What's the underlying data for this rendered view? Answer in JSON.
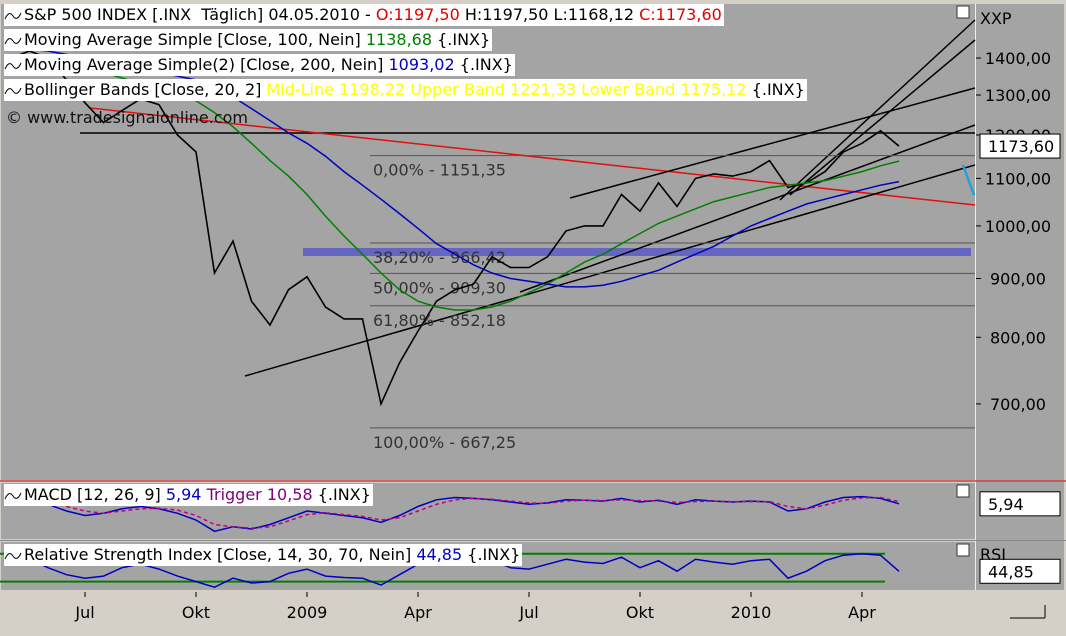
{
  "chart_data": [
    {
      "type": "line",
      "log": true,
      "legend_lines": [
        [
          {
            "text": "S&P 500 INDEX [.INX  Täglich] 04.05.2010 - "
          },
          {
            "text": "O:1197,50",
            "color": "#e00000"
          },
          {
            "text": " H:1197,50 L:1168,12 "
          },
          {
            "text": "C:1173,60",
            "color": "#e00000"
          }
        ],
        [
          {
            "text": "Moving Average Simple [Close, 100, Nein] "
          },
          {
            "text": "1138,68",
            "color": "#008000"
          },
          {
            "text": " {.INX}"
          }
        ],
        [
          {
            "text": "Moving Average Simple(2) [Close, 200, Nein] "
          },
          {
            "text": "1093,02",
            "color": "#0000c0"
          },
          {
            "text": " {.INX}"
          }
        ],
        [
          {
            "text": "Bollinger Bands [Close, 20, 2] "
          },
          {
            "text": "Mid-Line 1198,22 Upper Band 1221,33 Lower Band 1175,12",
            "color": "#ffff00"
          },
          {
            "text": " {.INX}"
          }
        ]
      ],
      "watermark": "© www.tradesignalonline.com",
      "symbol": "XXP",
      "last_value": {
        "value": 1173.6,
        "label": "1173,60"
      },
      "categories": [
        null,
        null,
        null,
        null,
        "Jul",
        null,
        null,
        null,
        null,
        null,
        "Okt",
        null,
        null,
        null,
        null,
        null,
        "2009",
        null,
        null,
        null,
        null,
        null,
        "Apr",
        null,
        null,
        null,
        null,
        null,
        "Jul",
        null,
        null,
        null,
        null,
        null,
        "Okt",
        null,
        null,
        null,
        null,
        null,
        "2010",
        null,
        null,
        null,
        null,
        null,
        "Apr",
        null,
        null
      ],
      "series": [
        {
          "color": "#000000",
          "values": [
            1400,
            1420,
            1400,
            1340,
            1280,
            1230,
            1260,
            1290,
            1275,
            1200,
            1160,
            910,
            970,
            860,
            820,
            880,
            903,
            850,
            830,
            830,
            700,
            760,
            810,
            860,
            880,
            890,
            940,
            920,
            920,
            940,
            990,
            1000,
            1000,
            1065,
            1030,
            1090,
            1040,
            1100,
            1110,
            1105,
            1115,
            1140,
            1080,
            1090,
            1115,
            1160,
            1180,
            1210,
            1173.6
          ]
        },
        {
          "color": "#008000",
          "values": [
            1370,
            1370,
            1372,
            1372,
            1368,
            1360,
            1345,
            1330,
            1315,
            1300,
            1285,
            1255,
            1220,
            1180,
            1140,
            1105,
            1065,
            1020,
            980,
            945,
            910,
            880,
            860,
            850,
            845,
            845,
            850,
            860,
            875,
            890,
            910,
            930,
            945,
            965,
            985,
            1005,
            1020,
            1035,
            1050,
            1060,
            1070,
            1080,
            1085,
            1090,
            1095,
            1105,
            1115,
            1128,
            1138.68
          ]
        },
        {
          "color": "#0000c0",
          "values": [
            1430,
            1425,
            1420,
            1410,
            1400,
            1390,
            1380,
            1370,
            1360,
            1350,
            1340,
            1320,
            1295,
            1265,
            1235,
            1205,
            1180,
            1150,
            1115,
            1085,
            1055,
            1025,
            995,
            965,
            945,
            925,
            910,
            900,
            895,
            890,
            885,
            885,
            888,
            895,
            905,
            915,
            930,
            945,
            960,
            980,
            1000,
            1015,
            1030,
            1045,
            1055,
            1065,
            1075,
            1085,
            1093.02
          ]
        }
      ],
      "ylim": [
        601,
        1557
      ],
      "yticks": [
        {
          "value": 700,
          "label": "700,00"
        },
        {
          "value": 800,
          "label": "800,00"
        },
        {
          "value": 900,
          "label": "900,00"
        },
        {
          "value": 1000,
          "label": "1000,00"
        },
        {
          "value": 1100,
          "label": "1100,00"
        },
        {
          "value": 1200,
          "label": "1200,00"
        },
        {
          "value": 1300,
          "label": "1300,00"
        },
        {
          "value": 1400,
          "label": "1400,00"
        }
      ],
      "fib_levels": [
        {
          "value": 1151.35,
          "label": "0,00% - 1151,35"
        },
        {
          "value": 966.42,
          "label": "38,20% - 966,42"
        },
        {
          "value": 909.3,
          "label": "50,00% - 909,30"
        },
        {
          "value": 852.18,
          "label": "61,80% - 852,18"
        },
        {
          "value": 667.25,
          "label": "100,00% - 667,25"
        }
      ]
    },
    {
      "type": "line",
      "log": false,
      "legend_lines": [
        [
          {
            "text": "MACD [12, 26, 9] "
          },
          {
            "text": "5,94",
            "color": "#0000c0"
          },
          {
            "text": " Trigger 10,58",
            "color": "#800080"
          },
          {
            "text": " {.INX}"
          }
        ]
      ],
      "last_value": {
        "value": 5.94,
        "label": "5,94"
      },
      "series": [
        {
          "color": "#0000c0",
          "values": [
            15,
            12,
            5,
            -10,
            -20,
            -15,
            -5,
            0,
            -5,
            -15,
            -30,
            -55,
            -45,
            -50,
            -40,
            -25,
            -10,
            -15,
            -20,
            -25,
            -35,
            -20,
            0,
            15,
            20,
            18,
            15,
            10,
            5,
            8,
            15,
            14,
            12,
            18,
            10,
            14,
            5,
            15,
            12,
            10,
            12,
            10,
            -10,
            -5,
            10,
            20,
            22,
            18,
            5.94
          ]
        },
        {
          "color": "#c00080",
          "dash": true,
          "values": [
            18,
            15,
            10,
            0,
            -10,
            -15,
            -10,
            -5,
            -4,
            -8,
            -20,
            -40,
            -45,
            -48,
            -45,
            -32,
            -18,
            -14,
            -18,
            -22,
            -30,
            -25,
            -10,
            5,
            15,
            18,
            16,
            12,
            8,
            7,
            12,
            14,
            13,
            15,
            13,
            12,
            9,
            11,
            12,
            11,
            11,
            11,
            0,
            -5,
            3,
            14,
            19,
            20,
            10.58
          ]
        }
      ],
      "ylim": [
        -70,
        50
      ]
    },
    {
      "type": "line",
      "log": false,
      "legend_lines": [
        [
          {
            "text": "Relative Strength Index [Close, 14, 30, 70, Nein] "
          },
          {
            "text": "44,85",
            "color": "#0000c0"
          },
          {
            "text": " {.INX}"
          }
        ]
      ],
      "symbol": "RSI",
      "last_value": {
        "value": 44.85,
        "label": "44,85"
      },
      "series": [
        {
          "color": "#0000c0",
          "values": [
            60,
            62,
            50,
            40,
            35,
            38,
            50,
            55,
            48,
            38,
            30,
            22,
            35,
            28,
            30,
            42,
            48,
            38,
            36,
            35,
            25,
            40,
            55,
            60,
            62,
            58,
            60,
            50,
            48,
            55,
            62,
            58,
            56,
            65,
            50,
            60,
            45,
            62,
            58,
            55,
            60,
            62,
            35,
            45,
            60,
            68,
            70,
            68,
            44.85
          ]
        }
      ],
      "levels": [
        30,
        70
      ],
      "level_color": "#008000",
      "ylim": [
        18,
        84
      ]
    }
  ]
}
